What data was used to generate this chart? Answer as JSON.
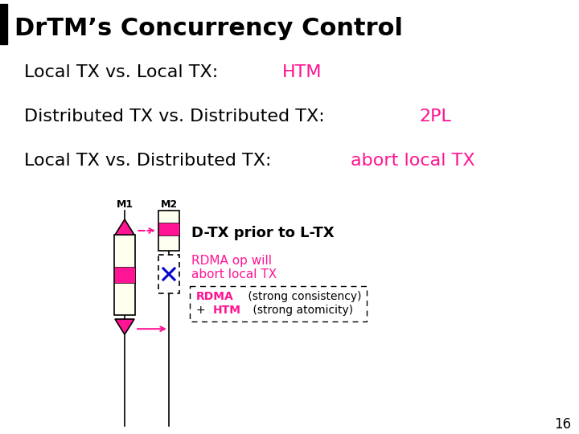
{
  "title": "DrTM’s Concurrency Control",
  "line1_black": "Local TX vs. Local TX: ",
  "line1_colored": "HTM",
  "line2_black": "Distributed TX vs. Distributed TX: ",
  "line2_colored": "2PL",
  "line3_black": "Local TX vs. Distributed TX: ",
  "line3_colored": "abort local TX",
  "accent_color": "#FF1493",
  "blue_color": "#0000CD",
  "black_color": "#000000",
  "white_color": "#FFFFFF",
  "bg_color": "#FFFFFF",
  "light_yellow": "#FFFFF0",
  "title_fontsize": 22,
  "body_fontsize": 16,
  "diagram_label": "D-TX prior to L-TX",
  "rdma_text1": "RDMA op will",
  "rdma_text2": "abort local TX",
  "box_rdma": "RDMA",
  "box_strong_consistency": " (strong consistency)",
  "box_plus": "+ HTM",
  "box_htm": "HTM",
  "box_strong_atomicity": " (strong atomicity)",
  "m1_label": "M1",
  "m2_label": "M2",
  "page_num": "16"
}
